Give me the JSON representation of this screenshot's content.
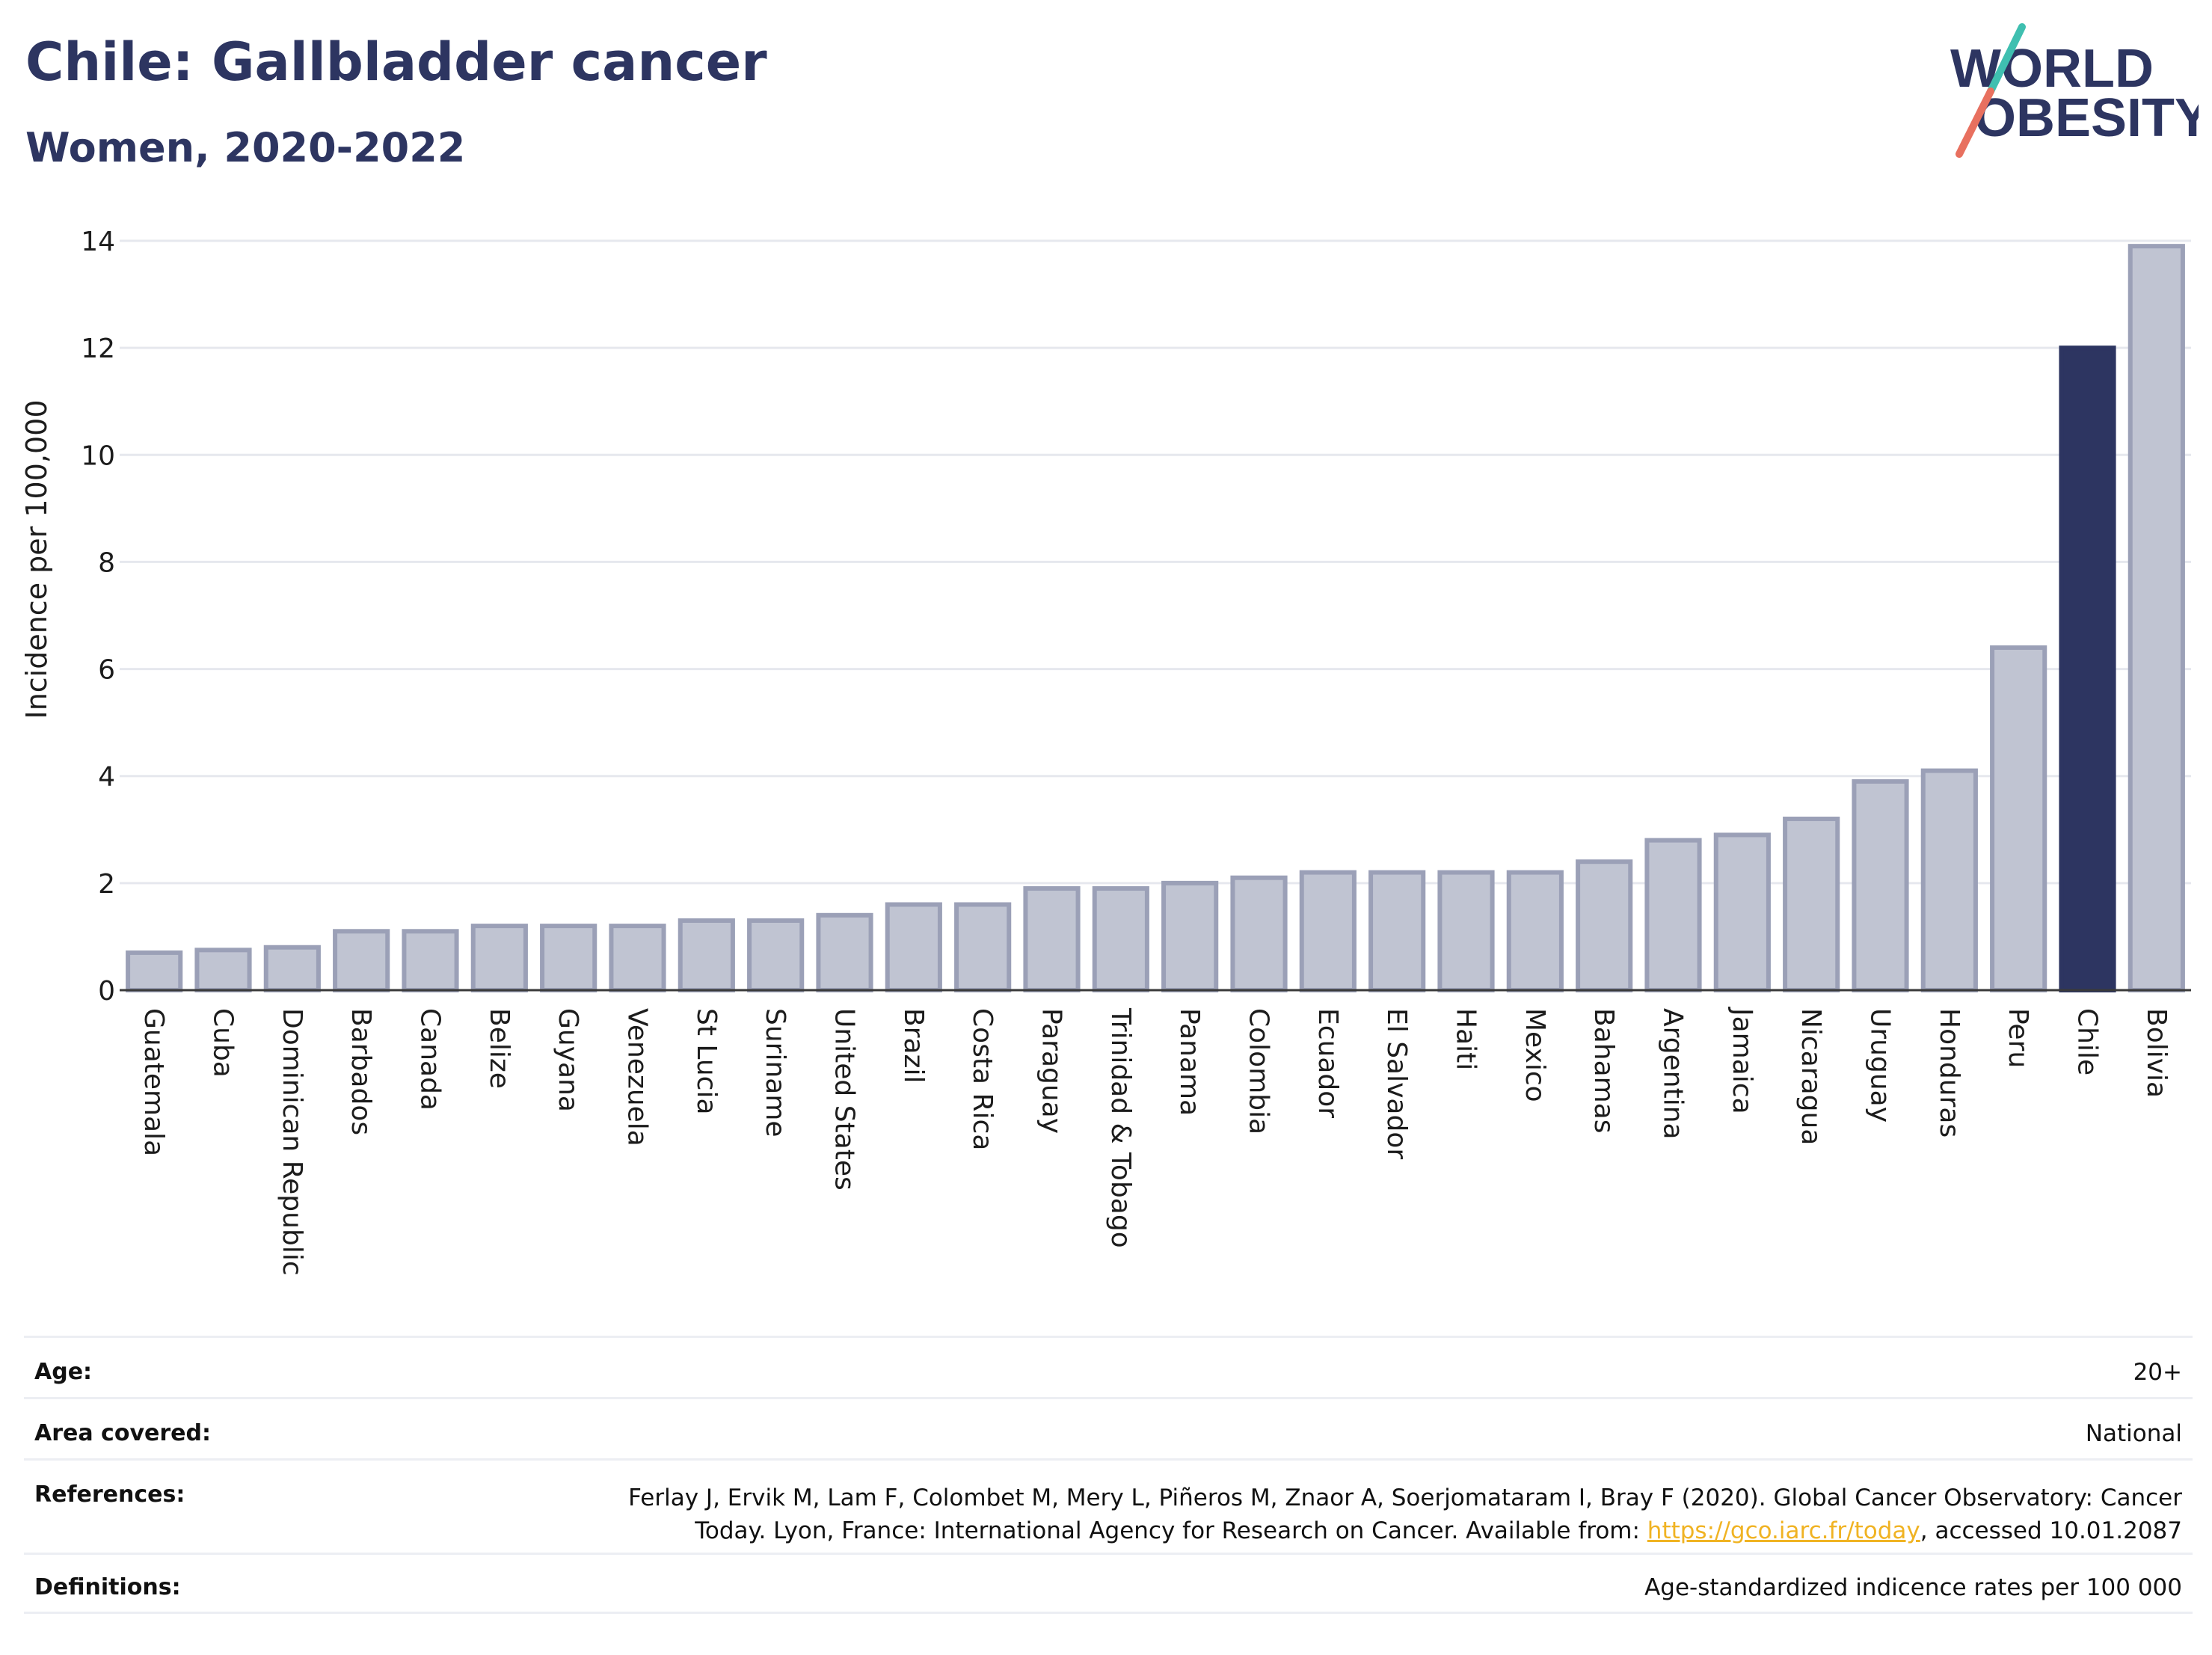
{
  "header": {
    "title": "Chile: Gallbladder cancer",
    "subtitle": "Women, 2020-2022"
  },
  "logo": {
    "line1": "WORLD",
    "line2": "OBESITY",
    "colors": {
      "text": "#2d3561",
      "slash_top": "#3fbfb0",
      "slash_bottom": "#e8705f"
    }
  },
  "chart_data": {
    "type": "bar",
    "ylabel": "Incidence per 100,000",
    "xlabel": "",
    "ylim": [
      0,
      14
    ],
    "yticks": [
      0,
      2,
      4,
      6,
      8,
      10,
      12,
      14
    ],
    "grid": true,
    "highlight": "Chile",
    "colors": {
      "bar": "#c0c4d2",
      "bar_edge": "#9ba0b7",
      "highlight": "#2d3561"
    },
    "categories": [
      "Guatemala",
      "Cuba",
      "Dominican Republic",
      "Barbados",
      "Canada",
      "Belize",
      "Guyana",
      "Venezuela",
      "St Lucia",
      "Suriname",
      "United States",
      "Brazil",
      "Costa Rica",
      "Paraguay",
      "Trinidad & Tobago",
      "Panama",
      "Colombia",
      "Ecuador",
      "El Salvador",
      "Haiti",
      "Mexico",
      "Bahamas",
      "Argentina",
      "Jamaica",
      "Nicaragua",
      "Uruguay",
      "Honduras",
      "Peru",
      "Chile",
      "Bolivia"
    ],
    "values": [
      0.7,
      0.75,
      0.8,
      1.1,
      1.1,
      1.2,
      1.2,
      1.2,
      1.3,
      1.3,
      1.4,
      1.6,
      1.6,
      1.9,
      1.9,
      2.0,
      2.1,
      2.2,
      2.2,
      2.2,
      2.2,
      2.4,
      2.8,
      2.9,
      3.2,
      3.9,
      4.1,
      6.4,
      12.0,
      13.9
    ]
  },
  "meta": {
    "age_label": "Age:",
    "age_value": "20+",
    "area_label": "Area covered:",
    "area_value": "National",
    "references_label": "References:",
    "references_text_1": "Ferlay J, Ervik M, Lam F, Colombet M, Mery L, Piñeros M, Znaor A, Soerjomataram I, Bray F (2020). Global Cancer Observatory: Cancer Today. Lyon, France: International Agency for Research on Cancer. Available from: ",
    "references_link": "https://gco.iarc.fr/today",
    "references_text_2": ", accessed 10.01.2087",
    "definitions_label": "Definitions:",
    "definitions_value": "Age-standardized indicence rates per 100 000"
  }
}
